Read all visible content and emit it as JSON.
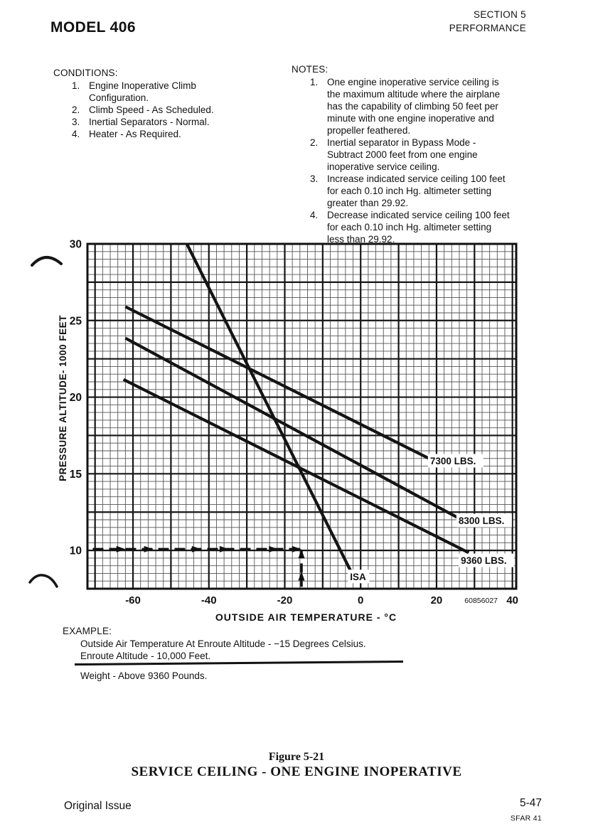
{
  "page": {
    "model_title": "MODEL 406",
    "section": [
      "SECTION 5",
      "PERFORMANCE"
    ],
    "footer": {
      "left": "Original Issue",
      "page_number": "5-47",
      "sub": "SFAR 41"
    }
  },
  "conditions": {
    "heading": "CONDITIONS:",
    "items": [
      "Engine Inoperative Climb\nConfiguration.",
      "Climb Speed - As Scheduled.",
      "Inertial Separators - Normal.",
      "Heater - As Required."
    ]
  },
  "notes": {
    "heading": "NOTES:",
    "items": [
      "One engine inoperative service ceiling is\nthe maximum altitude where the airplane\nhas the capability of climbing 50 feet per\nminute with one engine inoperative and\npropeller feathered.",
      "Inertial separator in Bypass Mode -\nSubtract 2000 feet from one engine\ninoperative service ceiling.",
      "Increase indicated service ceiling 100 feet\nfor each 0.10 inch Hg. altimeter setting\ngreater than 29.92.",
      "Decrease indicated service ceiling 100 feet\nfor each 0.10 inch Hg. altimeter setting\nless than 29.92."
    ]
  },
  "example": {
    "heading": "EXAMPLE:",
    "given": [
      "Outside Air Temperature At Enroute Altitude - −15 Degrees Celsius.",
      "Enroute Altitude - 10,000 Feet."
    ],
    "result": "Weight - Above 9360 Pounds."
  },
  "figure": {
    "label": "Figure 5-21",
    "title": "SERVICE CEILING - ONE ENGINE INOPERATIVE",
    "drawing_number": "60856027"
  },
  "chart_data": {
    "type": "line",
    "title": "SERVICE CEILING - ONE ENGINE INOPERATIVE",
    "xlabel": "OUTSIDE AIR TEMPERATURE - °C",
    "ylabel": "PRESSURE ALTITUDE- 1000 FEET",
    "xlim": [
      -72,
      41
    ],
    "ylim": [
      7.5,
      30
    ],
    "x_ticks": [
      -60,
      -40,
      -20,
      0,
      20,
      40
    ],
    "y_ticks": [
      10,
      15,
      20,
      25,
      30
    ],
    "grid": {
      "minor_x_step": 2,
      "minor_y_step": 0.5,
      "major_x_step": 10,
      "major_y_step": 2.5
    },
    "series": [
      {
        "name": "ISA",
        "points": [
          [
            -45.8,
            30.0
          ],
          [
            -2.1,
            8.4
          ]
        ],
        "label_pos": [
          -2.8,
          8.3
        ]
      },
      {
        "name": "7300 LBS.",
        "points": [
          [
            -62.0,
            25.9
          ],
          [
            18.0,
            16.0
          ]
        ],
        "label_pos": [
          18.3,
          15.85
        ]
      },
      {
        "name": "8300 LBS.",
        "points": [
          [
            -62.0,
            23.85
          ],
          [
            25.5,
            12.15
          ]
        ],
        "label_pos": [
          25.8,
          11.95
        ]
      },
      {
        "name": "9360 LBS.",
        "points": [
          [
            -62.5,
            21.15
          ],
          [
            28.5,
            9.85
          ]
        ],
        "label_pos": [
          26.4,
          9.35
        ]
      }
    ],
    "example_path": {
      "horizontal": {
        "y": 10.08,
        "x_from": -70.6,
        "x_to": -15.6,
        "arrow_x": [
          -62.5,
          -55.2,
          -42.6,
          -35.3,
          -22.3,
          -16.2
        ]
      },
      "vertical": {
        "x": -15.6,
        "y_from": 7.62,
        "y_to": 10.05,
        "arrow_y": [
          8.5,
          9.95
        ]
      }
    }
  }
}
